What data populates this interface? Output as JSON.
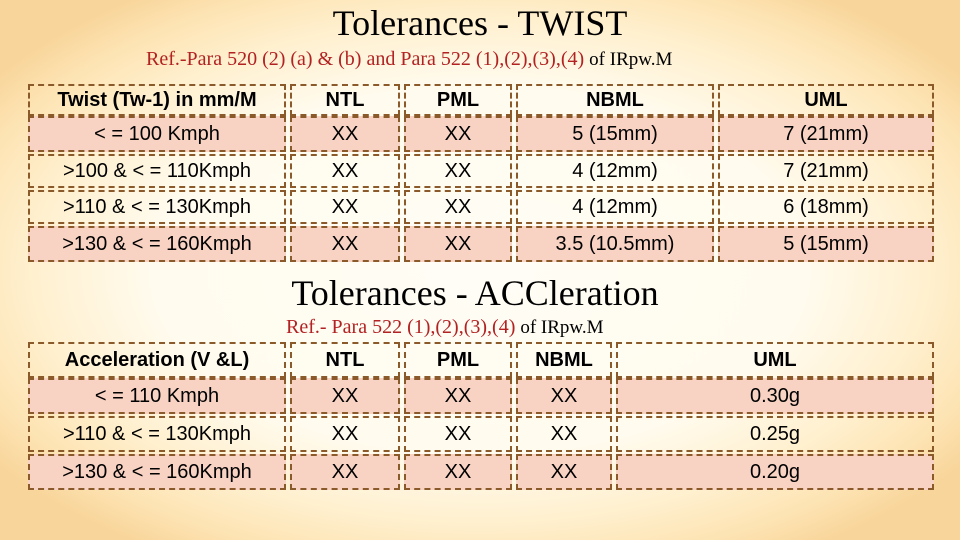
{
  "twist": {
    "title": "Tolerances - TWIST",
    "ref_red": "Ref.-Para 520 (2) (a) & (b)    and Para  522 (1),(2),(3),(4)",
    "ref_black": "of IRpw.M",
    "headers": [
      "Twist (Tw-1) in mm/M",
      "NTL",
      "PML",
      "NBML",
      "UML"
    ],
    "rows": [
      [
        "< = 100 Kmph",
        "XX",
        "XX",
        "5 (15mm)",
        "7 (21mm)"
      ],
      [
        ">100 & < = 110Kmph",
        "XX",
        "XX",
        "4 (12mm)",
        "7 (21mm)"
      ],
      [
        ">110 & < = 130Kmph",
        "XX",
        "XX",
        "4 (12mm)",
        "6 (18mm)"
      ],
      [
        ">130 & < = 160Kmph",
        "XX",
        "XX",
        "3.5 (10.5mm)",
        "5 (15mm)"
      ]
    ]
  },
  "accel": {
    "title": "Tolerances - ACCleration",
    "ref_red": "Ref.- Para 522 (1),(2),(3),(4)",
    "ref_black": "of IRpw.M",
    "headers": [
      "Acceleration (V &L)",
      "NTL",
      "PML",
      "NBML",
      "UML"
    ],
    "rows": [
      [
        "< = 110 Kmph",
        "XX",
        "XX",
        "XX",
        "0.30g"
      ],
      [
        ">110 & < = 130Kmph",
        "XX",
        "XX",
        "XX",
        "0.25g"
      ],
      [
        ">130 & < = 160Kmph",
        "XX",
        "XX",
        "XX",
        "0.20g"
      ]
    ]
  },
  "colors": {
    "reference_text": "#b22222",
    "row_band": "#f8d2c2",
    "border": "#8b5a2b"
  }
}
